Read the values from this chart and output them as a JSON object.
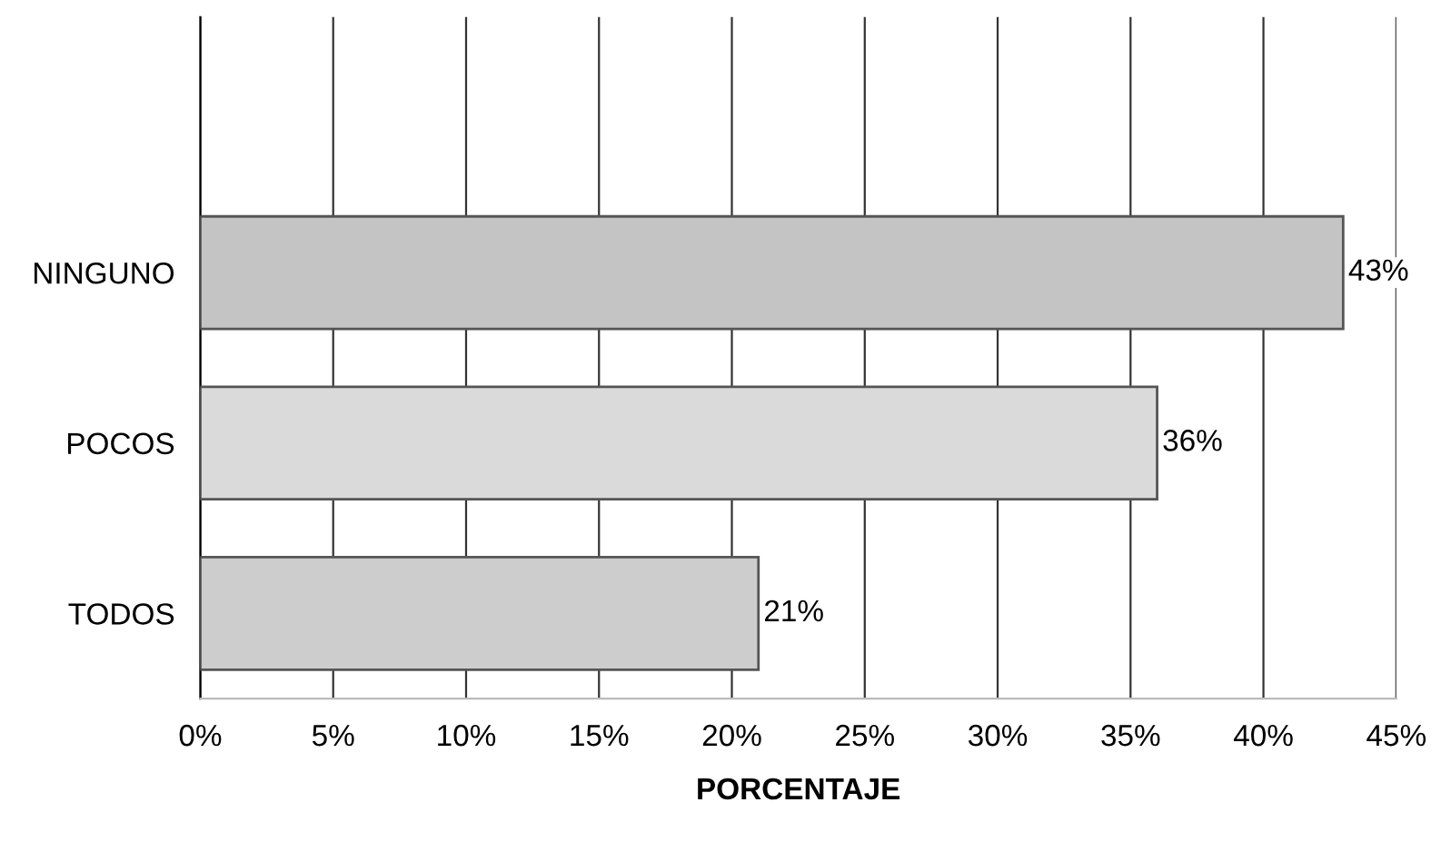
{
  "chart_data": {
    "type": "bar",
    "orientation": "horizontal",
    "xlabel": "PORCENTAJE",
    "categories": [
      "NINGUNO",
      "POCOS",
      "TODOS"
    ],
    "values": [
      43,
      36,
      21
    ],
    "colors": [
      "#c4c4c4",
      "#dadada",
      "#cdcdcd"
    ],
    "value_labels": [
      "43%",
      "36%",
      "21%"
    ],
    "xlim": [
      0,
      45
    ],
    "xticks": [
      {
        "value": 0,
        "label": "0%"
      },
      {
        "value": 5,
        "label": "5%"
      },
      {
        "value": 10,
        "label": "10%"
      },
      {
        "value": 15,
        "label": "15%"
      },
      {
        "value": 20,
        "label": "20%"
      },
      {
        "value": 25,
        "label": "25%"
      },
      {
        "value": 30,
        "label": "30%"
      },
      {
        "value": 35,
        "label": "35%"
      },
      {
        "value": 40,
        "label": "40%"
      },
      {
        "value": 45,
        "label": "45%"
      }
    ],
    "grid": "x",
    "legend": false
  }
}
